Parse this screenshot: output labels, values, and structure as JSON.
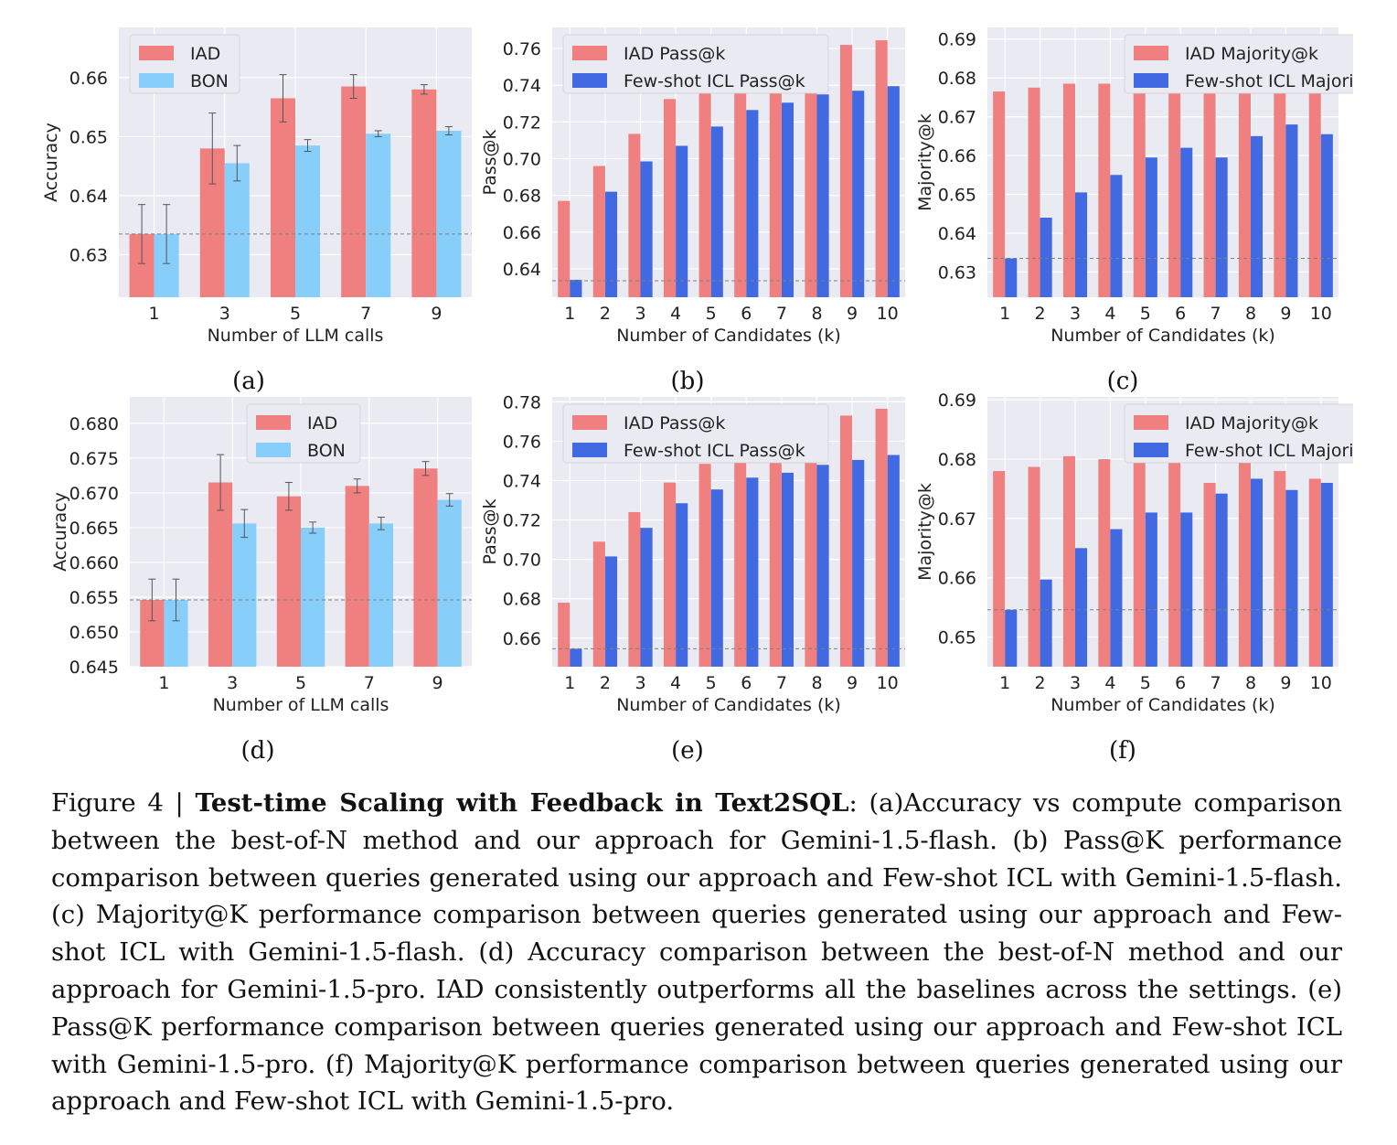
{
  "colors": {
    "iad": "#f08080",
    "bon": "#87cefa",
    "few_shot": "#4169e1",
    "plot_bg": "#eaeaf2",
    "grid": "#ffffff",
    "baseline": "#808080"
  },
  "chart_data": [
    {
      "id": "a",
      "type": "bar",
      "panel_label": "(a)",
      "xlabel": "Number of LLM calls",
      "ylabel": "Accuracy",
      "ylim": [
        0.6228,
        0.6685
      ],
      "yticks": [
        "0.63",
        "0.64",
        "0.65",
        "0.66"
      ],
      "categories": [
        "1",
        "3",
        "5",
        "7",
        "9"
      ],
      "baseline": 0.6335,
      "legend_position": "top-left",
      "series": [
        {
          "name": "IAD",
          "color": "#f08080",
          "values": [
            0.6335,
            0.648,
            0.6565,
            0.6585,
            0.658
          ],
          "errors": [
            0.005,
            0.006,
            0.004,
            0.002,
            0.0008
          ]
        },
        {
          "name": "BON",
          "color": "#87cefa",
          "values": [
            0.6335,
            0.6455,
            0.6485,
            0.6505,
            0.651
          ],
          "errors": [
            0.005,
            0.003,
            0.001,
            0.0005,
            0.0007
          ]
        }
      ]
    },
    {
      "id": "b",
      "type": "bar",
      "panel_label": "(b)",
      "xlabel": "Number of Candidates (k)",
      "ylabel": "Pass@k",
      "ylim": [
        0.6245,
        0.7715
      ],
      "yticks": [
        "0.64",
        "0.66",
        "0.68",
        "0.70",
        "0.72",
        "0.74",
        "0.76"
      ],
      "categories": [
        "1",
        "2",
        "3",
        "4",
        "5",
        "6",
        "7",
        "8",
        "9",
        "10"
      ],
      "baseline": 0.6335,
      "legend_position": "top-left",
      "series": [
        {
          "name": "IAD Pass@k",
          "color": "#f08080",
          "values": [
            0.677,
            0.696,
            0.7135,
            0.7325,
            0.7425,
            0.7435,
            0.7515,
            0.7575,
            0.762,
            0.7645
          ]
        },
        {
          "name": "Few-shot ICL Pass@k",
          "color": "#4169e1",
          "values": [
            0.634,
            0.682,
            0.6985,
            0.707,
            0.7175,
            0.7265,
            0.7305,
            0.735,
            0.737,
            0.7395
          ]
        }
      ]
    },
    {
      "id": "c",
      "type": "bar",
      "panel_label": "(c)",
      "xlabel": "Number of Candidates (k)",
      "ylabel": "Majority@k",
      "ylim": [
        0.6235,
        0.693
      ],
      "yticks": [
        "0.63",
        "0.64",
        "0.65",
        "0.66",
        "0.67",
        "0.68",
        "0.69"
      ],
      "categories": [
        "1",
        "2",
        "3",
        "4",
        "5",
        "6",
        "7",
        "8",
        "9",
        "10"
      ],
      "baseline": 0.6335,
      "legend_position": "top-right",
      "series": [
        {
          "name": "IAD Majority@k",
          "color": "#f08080",
          "values": [
            0.6765,
            0.6775,
            0.6785,
            0.6785,
            0.6795,
            0.6815,
            0.6815,
            0.6845,
            0.6845,
            0.6815
          ]
        },
        {
          "name": "Few-shot ICL Majority@k",
          "color": "#4169e1",
          "values": [
            0.6335,
            0.644,
            0.6505,
            0.655,
            0.6595,
            0.662,
            0.6595,
            0.665,
            0.668,
            0.6655
          ]
        }
      ]
    },
    {
      "id": "d",
      "type": "bar",
      "panel_label": "(d)",
      "xlabel": "Number of LLM calls",
      "ylabel": "Accuracy",
      "ylim": [
        0.645,
        0.6838
      ],
      "yticks": [
        "0.645",
        "0.650",
        "0.655",
        "0.660",
        "0.665",
        "0.670",
        "0.675",
        "0.680"
      ],
      "categories": [
        "1",
        "3",
        "5",
        "7",
        "9"
      ],
      "baseline": 0.6546,
      "legend_position": "top-center",
      "series": [
        {
          "name": "IAD",
          "color": "#f08080",
          "values": [
            0.6546,
            0.6715,
            0.6695,
            0.671,
            0.6735
          ],
          "errors": [
            0.003,
            0.004,
            0.002,
            0.001,
            0.001
          ]
        },
        {
          "name": "BON",
          "color": "#87cefa",
          "values": [
            0.6546,
            0.6656,
            0.665,
            0.6656,
            0.669
          ],
          "errors": [
            0.003,
            0.002,
            0.0008,
            0.0009,
            0.0009
          ]
        }
      ]
    },
    {
      "id": "e",
      "type": "bar",
      "panel_label": "(e)",
      "xlabel": "Number of Candidates (k)",
      "ylabel": "Pass@k",
      "ylim": [
        0.6455,
        0.7825
      ],
      "yticks": [
        "0.66",
        "0.68",
        "0.70",
        "0.72",
        "0.74",
        "0.76",
        "0.78"
      ],
      "categories": [
        "1",
        "2",
        "3",
        "4",
        "5",
        "6",
        "7",
        "8",
        "9",
        "10"
      ],
      "baseline": 0.6546,
      "legend_position": "top-left",
      "series": [
        {
          "name": "IAD Pass@k",
          "color": "#f08080",
          "values": [
            0.678,
            0.709,
            0.724,
            0.739,
            0.7485,
            0.756,
            0.761,
            0.766,
            0.773,
            0.7765
          ]
        },
        {
          "name": "Few-shot ICL Pass@k",
          "color": "#4169e1",
          "values": [
            0.6546,
            0.7015,
            0.716,
            0.7285,
            0.7355,
            0.7415,
            0.744,
            0.748,
            0.7505,
            0.753
          ]
        }
      ]
    },
    {
      "id": "f",
      "type": "bar",
      "panel_label": "(f)",
      "xlabel": "Number of Candidates (k)",
      "ylabel": "Majority@k",
      "ylim": [
        0.645,
        0.6905
      ],
      "yticks": [
        "0.65",
        "0.66",
        "0.67",
        "0.68",
        "0.69"
      ],
      "categories": [
        "1",
        "2",
        "3",
        "4",
        "5",
        "6",
        "7",
        "8",
        "9",
        "10"
      ],
      "baseline": 0.6546,
      "legend_position": "top-right",
      "series": [
        {
          "name": "IAD Majority@k",
          "color": "#f08080",
          "values": [
            0.678,
            0.6787,
            0.6805,
            0.68,
            0.68,
            0.68,
            0.676,
            0.6808,
            0.678,
            0.6767
          ]
        },
        {
          "name": "Few-shot ICL Majority@k",
          "color": "#4169e1",
          "values": [
            0.6546,
            0.6597,
            0.665,
            0.6682,
            0.671,
            0.671,
            0.6742,
            0.6767,
            0.6748,
            0.676
          ]
        }
      ]
    }
  ],
  "caption": {
    "prefix": "Figure 4 | ",
    "bold": "Test-time Scaling with Feedback in Text2SQL",
    "text": ": (a)Accuracy vs compute comparison between the best-of-N method and our approach for Gemini-1.5-flash. (b) Pass@K performance comparison between queries generated using our approach and Few-shot ICL with Gemini-1.5-flash. (c) Majority@K performance comparison between queries generated using our approach and Few-shot ICL with Gemini-1.5-flash. (d) Accuracy comparison between the best-of-N method and our approach for Gemini-1.5-pro. IAD consistently outperforms all the baselines across the settings. (e) Pass@K performance comparison between queries generated using our approach and Few-shot ICL with Gemini-1.5-pro. (f) Majority@K performance comparison between queries generated using our approach and Few-shot ICL with Gemini-1.5-pro."
  }
}
